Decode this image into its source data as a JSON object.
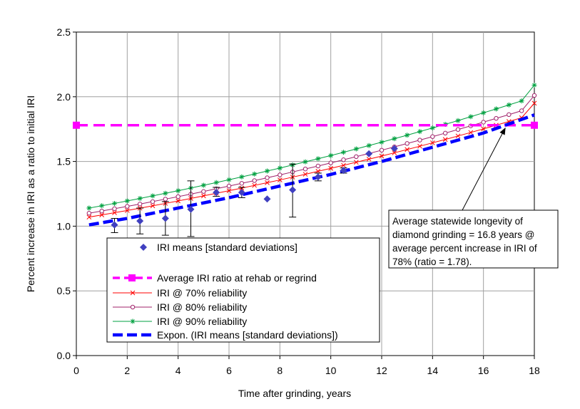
{
  "chart_data": {
    "type": "scatter",
    "xlabel": "Time after grinding, years",
    "ylabel": "Percent increase in IRI as a ratio to initial IRI",
    "xlim": [
      0,
      18
    ],
    "ylim": [
      0,
      2.5
    ],
    "xticks": [
      "0",
      "2",
      "4",
      "6",
      "8",
      "10",
      "12",
      "14",
      "16",
      "18"
    ],
    "yticks": [
      "0.0",
      "0.5",
      "1.0",
      "1.5",
      "2.0",
      "2.5"
    ],
    "grid": true,
    "legend_position": "bottom-left inside",
    "colors": {
      "means": "#4040c0",
      "rehab": "#ff00ff",
      "r70": "#ff0000",
      "r80": "#a0206a",
      "r90": "#00a040",
      "expon": "#0000ff"
    },
    "means": {
      "name": "IRI means [standard deviations]",
      "points": [
        {
          "x": 1.5,
          "y": 1.01,
          "lo": 0.95,
          "hi": 1.06
        },
        {
          "x": 2.5,
          "y": 1.04,
          "lo": 0.94,
          "hi": 1.14
        },
        {
          "x": 3.5,
          "y": 1.06,
          "lo": 0.93,
          "hi": 1.19
        },
        {
          "x": 4.5,
          "y": 1.13,
          "lo": 0.92,
          "hi": 1.35
        },
        {
          "x": 5.5,
          "y": 1.26,
          "lo": 1.23,
          "hi": 1.3
        },
        {
          "x": 6.5,
          "y": 1.26,
          "lo": 1.22,
          "hi": 1.3
        },
        {
          "x": 7.5,
          "y": 1.21,
          "lo": null,
          "hi": null
        },
        {
          "x": 8.5,
          "y": 1.28,
          "lo": 1.07,
          "hi": 1.48
        },
        {
          "x": 9.5,
          "y": 1.38,
          "lo": 1.35,
          "hi": 1.41
        },
        {
          "x": 10.5,
          "y": 1.43,
          "lo": 1.41,
          "hi": 1.45
        },
        {
          "x": 11.5,
          "y": 1.56,
          "lo": null,
          "hi": null
        },
        {
          "x": 12.5,
          "y": 1.6,
          "lo": null,
          "hi": null
        }
      ]
    },
    "rehab": {
      "name": "Average IRI ratio at rehab or regrind",
      "y": 1.78,
      "x_points": [
        0,
        18
      ]
    },
    "series": [
      {
        "key": "r70",
        "name": "IRI @ 70% reliability",
        "marker": "x",
        "x": [
          0.5,
          1.0,
          1.5,
          2.0,
          2.5,
          3.0,
          3.5,
          4.0,
          4.5,
          5.0,
          5.5,
          6.0,
          6.5,
          7.0,
          7.5,
          8.0,
          8.5,
          9.0,
          9.5,
          10.0,
          10.5,
          11.0,
          11.5,
          12.0,
          12.5,
          13.0,
          13.5,
          14.0,
          14.5,
          15.0,
          15.5,
          16.0,
          16.5,
          17.0,
          17.5,
          18.0
        ],
        "y": [
          1.07,
          1.087,
          1.104,
          1.121,
          1.139,
          1.157,
          1.176,
          1.195,
          1.214,
          1.234,
          1.254,
          1.274,
          1.294,
          1.315,
          1.336,
          1.357,
          1.379,
          1.401,
          1.424,
          1.447,
          1.47,
          1.494,
          1.518,
          1.542,
          1.567,
          1.592,
          1.618,
          1.644,
          1.67,
          1.697,
          1.724,
          1.752,
          1.78,
          1.809,
          1.838,
          1.95
        ]
      },
      {
        "key": "r80",
        "name": "IRI @ 80% reliability",
        "marker": "circle",
        "x": [
          0.5,
          1.0,
          1.5,
          2.0,
          2.5,
          3.0,
          3.5,
          4.0,
          4.5,
          5.0,
          5.5,
          6.0,
          6.5,
          7.0,
          7.5,
          8.0,
          8.5,
          9.0,
          9.5,
          10.0,
          10.5,
          11.0,
          11.5,
          12.0,
          12.5,
          13.0,
          13.5,
          14.0,
          14.5,
          15.0,
          15.5,
          16.0,
          16.5,
          17.0,
          17.5,
          18.0
        ],
        "y": [
          1.1,
          1.117,
          1.135,
          1.153,
          1.171,
          1.19,
          1.209,
          1.228,
          1.248,
          1.268,
          1.289,
          1.31,
          1.331,
          1.352,
          1.374,
          1.396,
          1.419,
          1.442,
          1.465,
          1.489,
          1.513,
          1.537,
          1.562,
          1.587,
          1.613,
          1.639,
          1.665,
          1.692,
          1.719,
          1.747,
          1.775,
          1.804,
          1.833,
          1.862,
          1.892,
          2.01
        ]
      },
      {
        "key": "r90",
        "name": "IRI @ 90% reliability",
        "marker": "star",
        "x": [
          0.5,
          1.0,
          1.5,
          2.0,
          2.5,
          3.0,
          3.5,
          4.0,
          4.5,
          5.0,
          5.5,
          6.0,
          6.5,
          7.0,
          7.5,
          8.0,
          8.5,
          9.0,
          9.5,
          10.0,
          10.5,
          11.0,
          11.5,
          12.0,
          12.5,
          13.0,
          13.5,
          14.0,
          14.5,
          15.0,
          15.5,
          16.0,
          16.5,
          17.0,
          17.5,
          18.0
        ],
        "y": [
          1.14,
          1.158,
          1.176,
          1.195,
          1.214,
          1.234,
          1.254,
          1.274,
          1.295,
          1.316,
          1.337,
          1.359,
          1.381,
          1.403,
          1.426,
          1.449,
          1.473,
          1.497,
          1.521,
          1.546,
          1.571,
          1.597,
          1.623,
          1.649,
          1.676,
          1.703,
          1.731,
          1.759,
          1.787,
          1.816,
          1.846,
          1.876,
          1.906,
          1.937,
          1.968,
          2.09
        ]
      }
    ],
    "expon": {
      "name": "Expon. (IRI means [standard deviations])",
      "x": [
        0.5,
        2,
        4,
        6,
        8,
        10,
        12,
        14,
        16,
        18
      ],
      "y": [
        1.01,
        1.06,
        1.14,
        1.22,
        1.31,
        1.4,
        1.5,
        1.61,
        1.72,
        1.86
      ]
    },
    "annotation": {
      "lines": [
        "Average statewide longevity of",
        "diamond grinding = 16.8 years @",
        "average percent increase in IRI of",
        "78% (ratio = 1.78)."
      ],
      "target": {
        "x": 16.8,
        "y": 1.78
      }
    }
  }
}
